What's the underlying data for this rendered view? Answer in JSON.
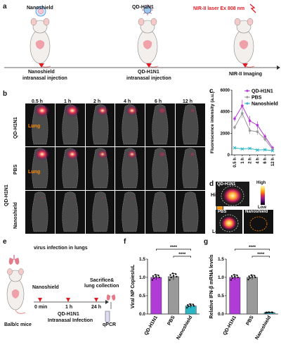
{
  "panels": {
    "a": "a",
    "b": "b",
    "c": "c",
    "d": "d",
    "e": "e",
    "f": "f",
    "g": "g"
  },
  "panel_a": {
    "mouse1_label": "Nanoshield",
    "mouse2_label": "QD-H1N1",
    "mouse3_label": "NIR-II laser Ex 808 nm",
    "step1": [
      "Nanoshield",
      "intranasal injection"
    ],
    "step2": [
      "QD-H1N1",
      "intranasal injection"
    ],
    "step3": "NIR-II Imaging"
  },
  "panel_b": {
    "times": [
      "0.5 h",
      "1 h",
      "2 h",
      "4 h",
      "6 h",
      "12 h"
    ],
    "row_labels": [
      "QD-H1N1",
      "PBS",
      "Nanoshield"
    ],
    "group_label": "QD-H1N1",
    "lung_label": "Lung",
    "colorbar_high": "High",
    "colorbar_low": "Low"
  },
  "panel_d": {
    "labels": [
      "QD-H1N1",
      "PBS",
      "Nanoshield"
    ],
    "colorbar_high": "High",
    "colorbar_low": "Low"
  },
  "panel_e": {
    "title": "virus infection in lungs",
    "nanoshield": "Nanoshield",
    "t0": "0 min",
    "t1": "1 h",
    "t2": "24 h",
    "infection": [
      "QD-H1N1",
      "Intranasal Infection"
    ],
    "sacrifice": [
      "Sacrifice&",
      "lung collection"
    ],
    "mice": "Balb/c mice",
    "qpcr": "qPCR"
  },
  "chart_data": [
    {
      "type": "line",
      "panel": "c",
      "x": [
        "0.5 h",
        "1 h",
        "2 h",
        "4 h",
        "6 h",
        "12 h"
      ],
      "series": [
        {
          "name": "QD-H1N1",
          "values": [
            3350,
            4550,
            3150,
            2750,
            1700,
            650
          ],
          "errors": [
            250,
            550,
            450,
            350,
            250,
            180
          ],
          "color": "#b13bd6"
        },
        {
          "name": "PBS",
          "values": [
            2550,
            3850,
            2250,
            2150,
            1450,
            500
          ],
          "errors": [
            200,
            450,
            300,
            300,
            200,
            150
          ],
          "color": "#9a9a9a"
        },
        {
          "name": "Nanoshield",
          "values": [
            650,
            550,
            600,
            450,
            480,
            380
          ],
          "errors": [
            80,
            60,
            60,
            60,
            70,
            60
          ],
          "color": "#2bb6c6"
        }
      ],
      "ylabel": "Fluorescence intensity (a.u.)",
      "ylim": [
        0,
        6000
      ],
      "yticks": [
        0,
        2000,
        4000,
        6000
      ],
      "legend": "top-right"
    },
    {
      "type": "bar",
      "panel": "f",
      "categories": [
        "QD-H1N1",
        "PBS",
        "Nanoshield"
      ],
      "values": [
        1.0,
        1.02,
        0.22
      ],
      "errors": [
        0.07,
        0.09,
        0.05
      ],
      "colors": [
        "#b13bd6",
        "#9a9a9a",
        "#2bb6c6"
      ],
      "ylabel": "Viral NP Copies/uL",
      "ylim": [
        0,
        1.5
      ],
      "yticks": [
        0.0,
        0.5,
        1.0,
        1.5
      ],
      "significance": [
        "****",
        "****"
      ]
    },
    {
      "type": "bar",
      "panel": "g",
      "categories": [
        "QD-H1N1",
        "PBS",
        "Nanoshield"
      ],
      "values": [
        1.0,
        1.0,
        0.04
      ],
      "errors": [
        0.07,
        0.06,
        0.01
      ],
      "colors": [
        "#b13bd6",
        "#9a9a9a",
        "#2bb6c6"
      ],
      "ylabel": "Relative IFN-β mRNA levels",
      "ylim": [
        0,
        1.5
      ],
      "yticks": [
        0.0,
        0.5,
        1.0,
        1.5
      ],
      "significance": [
        "****",
        "****"
      ]
    }
  ]
}
